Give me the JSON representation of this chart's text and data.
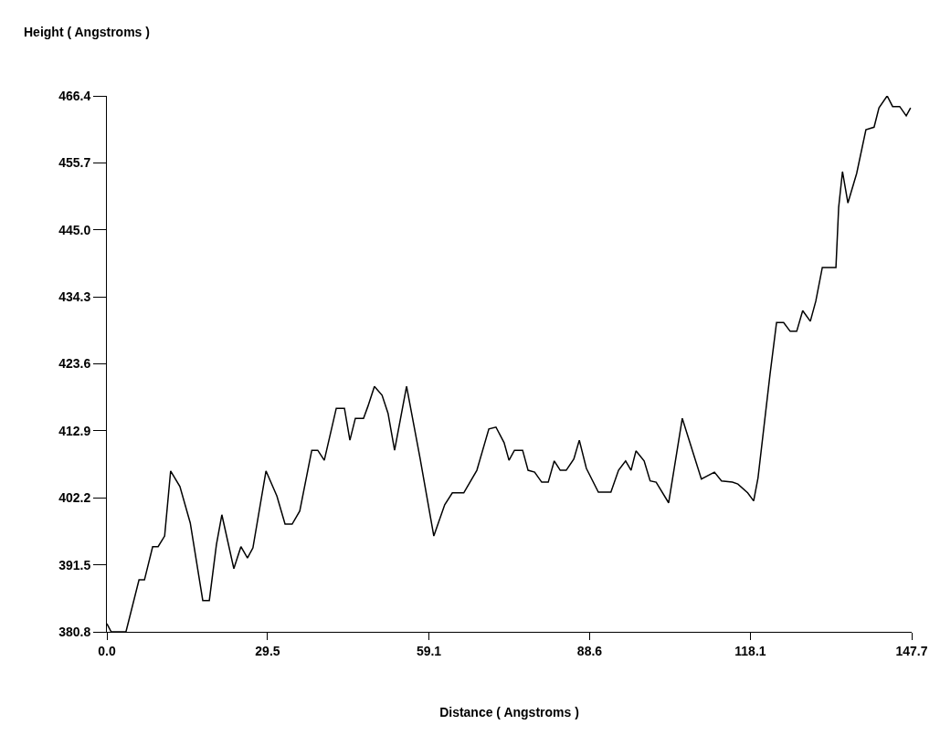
{
  "chart_data": {
    "type": "line",
    "xlabel": "Distance ( Angstroms )",
    "ylabel": "Height ( Angstroms )",
    "xlim": [
      0,
      147.7
    ],
    "ylim": [
      380.8,
      466.4
    ],
    "xticks": [
      {
        "value": 0,
        "label": "0.0"
      },
      29.5,
      59.1,
      88.6,
      118.1,
      147.7
    ],
    "yticks": [
      380.8,
      391.5,
      402.2,
      412.9,
      423.6,
      434.3,
      {
        "value": 445,
        "label": "445.0"
      },
      455.7,
      466.4
    ],
    "marker": "none",
    "line_style": "solid",
    "series": [
      {
        "color": "#000000",
        "x": [
          0.0,
          0.8,
          3.5,
          5.9,
          6.9,
          8.4,
          9.4,
          10.6,
          11.7,
          13.4,
          15.3,
          17.6,
          18.8,
          20.1,
          21.1,
          23.3,
          24.6,
          25.8,
          26.8,
          29.2,
          31.2,
          32.7,
          34.0,
          35.4,
          37.6,
          38.7,
          39.9,
          42.1,
          43.6,
          44.6,
          45.6,
          47.1,
          47.9,
          49.1,
          50.5,
          51.6,
          52.8,
          55.0,
          57.5,
          60.0,
          62.0,
          63.4,
          65.5,
          67.9,
          70.1,
          71.4,
          72.9,
          73.8,
          74.8,
          76.3,
          77.3,
          78.5,
          79.8,
          81.0,
          82.1,
          83.2,
          84.3,
          85.7,
          86.7,
          88.0,
          90.2,
          92.5,
          93.9,
          95.2,
          96.2,
          97.1,
          98.6,
          99.7,
          100.8,
          103.1,
          105.6,
          109.1,
          111.5,
          112.8,
          114.8,
          115.8,
          117.6,
          118.7,
          119.5,
          121.7,
          122.9,
          124.2,
          125.4,
          126.6,
          127.7,
          129.1,
          130.1,
          131.3,
          133.8,
          134.3,
          135.0,
          136.0,
          137.6,
          139.3,
          140.8,
          141.7,
          143.2,
          144.2,
          145.5,
          146.7,
          147.5
        ],
        "values": [
          382.1,
          380.8,
          380.8,
          389.1,
          389.1,
          394.4,
          394.4,
          396.1,
          406.5,
          404.0,
          398.2,
          385.8,
          385.8,
          394.7,
          399.5,
          390.9,
          394.4,
          392.6,
          394.2,
          406.5,
          402.5,
          398.0,
          398.0,
          400.1,
          409.8,
          409.8,
          408.2,
          416.5,
          416.5,
          411.4,
          414.9,
          414.9,
          416.8,
          420.0,
          418.6,
          415.7,
          409.8,
          420.0,
          408.4,
          396.1,
          401.1,
          403.0,
          403.0,
          406.6,
          413.2,
          413.5,
          411.0,
          408.2,
          409.8,
          409.8,
          406.6,
          406.3,
          404.7,
          404.7,
          408.1,
          406.6,
          406.6,
          408.4,
          411.4,
          406.9,
          403.1,
          403.1,
          406.6,
          408.1,
          406.6,
          409.7,
          408.1,
          404.9,
          404.7,
          401.4,
          414.9,
          405.2,
          406.3,
          404.9,
          404.7,
          404.4,
          403.0,
          401.7,
          405.4,
          421.9,
          430.2,
          430.2,
          428.8,
          428.8,
          432.1,
          430.4,
          433.6,
          439.0,
          439.0,
          448.6,
          454.3,
          449.3,
          454.0,
          461.0,
          461.4,
          464.5,
          466.4,
          464.7,
          464.7,
          463.2,
          464.5
        ]
      }
    ]
  }
}
